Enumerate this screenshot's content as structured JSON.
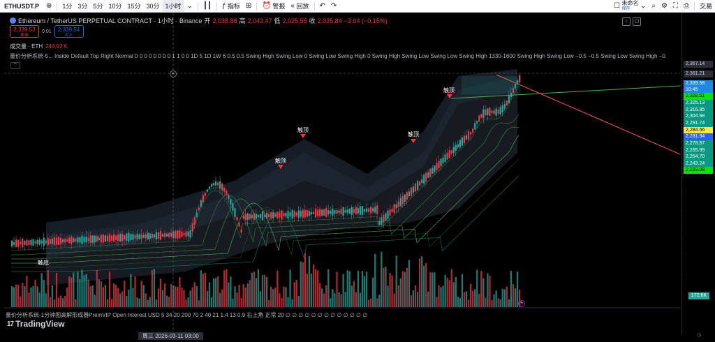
{
  "toolbar": {
    "symbol": "ETHUSDT.P",
    "intervals": [
      "1分",
      "3分",
      "5分",
      "10分",
      "15分",
      "30分",
      "1小时"
    ],
    "active_interval": "1小时",
    "indicators_label": "指标",
    "alert_label": "警报",
    "replay_label": "回放",
    "layout_name": "未命名",
    "layout_save": "保存",
    "trade_label": "交易"
  },
  "legend": {
    "title": "Ethereum / TetherUS PERPETUAL CONTRACT · 1小时 · Binance",
    "open_label": "开",
    "open": "2,038.88",
    "high_label": "高",
    "high": "2,043.47",
    "low_label": "低",
    "low": "2,025.55",
    "close_label": "收",
    "close": "2,035.84",
    "change": "−3.04 (−0.15%)",
    "sell_price": "2,339.53",
    "sell_label": "卖出",
    "spread": "0.01",
    "buy_price": "2,339.54",
    "buy_label": "买入",
    "volume_label": "成交量 · ETH",
    "volume_value": "244.92 K",
    "indicator_text": "量价分析系统-5... Inside Default Top Right Normal 0 0 0 0 0 0 0 0 1 1 0 0 1D 5 1D 1W 6 0.5 0.5 Swing High Swing Low 0 Swing Low Swing High 0 Swing High Swing Low Swing Low Swing High 1330-1600 Swing High Swing Low −0.5 −0.5 Swing Low Swing High −0.5 −0."
  },
  "chart_annotations": {
    "top_label_1": "触顶",
    "top_label_2": "触顶",
    "top_label_3": "触顶",
    "top_label_4": "触顶",
    "bottom_label": "触底"
  },
  "price_axis": [
    {
      "value": "2,367.14",
      "style": "grey"
    },
    {
      "value": "2,361.21",
      "style": "grey"
    },
    {
      "value": "2,339.58",
      "style": "teal"
    },
    {
      "value": "10:45",
      "style": "teal"
    },
    {
      "value": "2,328.51",
      "style": "bgreen"
    },
    {
      "value": "2,325.13",
      "style": "green"
    },
    {
      "value": "2,316.85",
      "style": "green"
    },
    {
      "value": "2,304.98",
      "style": "green"
    },
    {
      "value": "2,291.74",
      "style": "green"
    },
    {
      "value": "2,284.56",
      "style": "yellow"
    },
    {
      "value": "2,281.94",
      "style": "blue"
    },
    {
      "value": "2,278.67",
      "style": "green"
    },
    {
      "value": "2,265.99",
      "style": "green"
    },
    {
      "value": "2,254.70",
      "style": "green"
    },
    {
      "value": "2,243.24",
      "style": "green"
    },
    {
      "value": "2,233.08",
      "style": "bgreen"
    }
  ],
  "volume_badge": "172.6K",
  "bottom": {
    "indicator_text": "量价分析系统-1分钟图高解形成器PremVIP Open Interest USD 5 34 20 200 70 2 40 21 1.4 13 0.9 右上角 正常 20 ∅ ∅ ∅ ∅ ∅ ∅ ∅ ∅ ∅ ∅ ∅ ∅ ∅",
    "logo_text": "TradingView",
    "crosshair_time": "周三 2026-03-11  03:00"
  },
  "colors": {
    "up": "#26a69a",
    "down": "#f23645",
    "green_line": "#4caf50",
    "red_line": "#ff5252"
  }
}
